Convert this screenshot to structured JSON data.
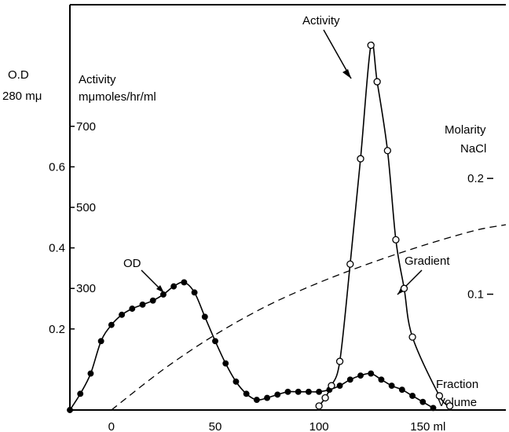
{
  "chart_data": {
    "type": "line",
    "x": {
      "ticks": [
        0,
        50,
        100
      ],
      "last_tick": 150,
      "last_tick_label": "150 ml",
      "range": [
        -20,
        190
      ]
    },
    "y_od": {
      "axis_label_line1": "O.D",
      "axis_label_line2": "280 mμ",
      "ticks": [
        0.2,
        0.4,
        0.6
      ],
      "tick_labels": [
        "0.2",
        "0.4",
        "0.6"
      ],
      "range": [
        0,
        1.0
      ]
    },
    "y_activity": {
      "axis_label_line1": "Activity",
      "axis_label_line2": "mμmoles/hr/ml",
      "ticks": [
        300,
        500,
        700
      ],
      "tick_labels": [
        "300",
        "500",
        "700"
      ],
      "range": [
        0,
        1000
      ]
    },
    "y_molarity": {
      "axis_label_line1": "Molarity",
      "axis_label_line2": "NaCl",
      "ticks": [
        0.1,
        0.2
      ],
      "tick_labels": [
        "0.1",
        "0.2"
      ],
      "range": [
        0,
        0.35
      ]
    },
    "series": [
      {
        "name": "OD",
        "axis": "y_od",
        "marker": "filled",
        "x": [
          -20,
          -15,
          -10,
          -5,
          0,
          5,
          10,
          15,
          20,
          25,
          30,
          35,
          40,
          45,
          50,
          55,
          60,
          65,
          70,
          75,
          80,
          85,
          90,
          95,
          100,
          105,
          110,
          115,
          120,
          125,
          130,
          135,
          140,
          145,
          150,
          155
        ],
        "y": [
          0.0,
          0.04,
          0.09,
          0.17,
          0.21,
          0.235,
          0.25,
          0.26,
          0.27,
          0.285,
          0.305,
          0.315,
          0.29,
          0.23,
          0.17,
          0.115,
          0.07,
          0.04,
          0.025,
          0.03,
          0.038,
          0.045,
          0.045,
          0.045,
          0.045,
          0.05,
          0.06,
          0.075,
          0.085,
          0.09,
          0.075,
          0.06,
          0.05,
          0.035,
          0.02,
          0.005
        ]
      },
      {
        "name": "Activity",
        "axis": "y_activity",
        "marker": "open",
        "x": [
          100,
          103,
          106,
          110,
          115,
          120,
          125,
          128,
          133,
          137,
          141,
          145,
          158,
          163
        ],
        "y": [
          10,
          30,
          60,
          120,
          360,
          620,
          900,
          810,
          640,
          420,
          300,
          180,
          35,
          10
        ]
      },
      {
        "name": "Gradient",
        "axis": "y_molarity",
        "style": "dashed",
        "x": [
          0,
          25,
          50,
          75,
          100,
          125,
          150,
          175,
          190
        ],
        "y": [
          0.0,
          0.035,
          0.065,
          0.09,
          0.11,
          0.127,
          0.142,
          0.155,
          0.16
        ]
      }
    ],
    "annotations": {
      "od_label": "OD",
      "activity_label": "Activity",
      "gradient_label": "Gradient",
      "fraction_label": "Fraction",
      "volume_label": "Volume"
    },
    "grid": false,
    "legend": "none"
  }
}
